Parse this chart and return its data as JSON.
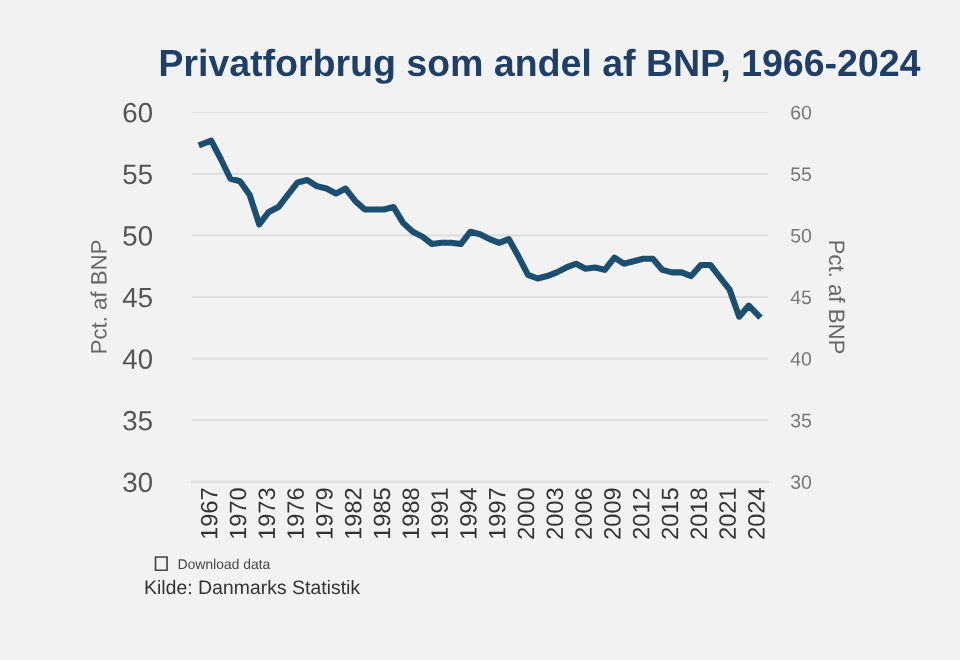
{
  "chart_data": {
    "type": "line",
    "title": "Privatforbrug som andel af BNP, 1966-2024",
    "ylabel": "Pct. af BNP",
    "y2label": "Pct. af BNP",
    "x": [
      1966,
      1967,
      1968,
      1969,
      1970,
      1971,
      1972,
      1973,
      1974,
      1975,
      1976,
      1977,
      1978,
      1979,
      1980,
      1981,
      1982,
      1983,
      1984,
      1985,
      1986,
      1987,
      1988,
      1989,
      1990,
      1991,
      1992,
      1993,
      1994,
      1995,
      1996,
      1997,
      1998,
      1999,
      2000,
      2001,
      2002,
      2003,
      2004,
      2005,
      2006,
      2007,
      2008,
      2009,
      2010,
      2011,
      2012,
      2013,
      2014,
      2015,
      2016,
      2017,
      2018,
      2019,
      2020,
      2021,
      2022,
      2023,
      2024
    ],
    "series": [
      {
        "color": "#1b4f72",
        "values": [
          57.4,
          57.7,
          56.2,
          54.6,
          54.4,
          53.3,
          50.9,
          51.9,
          52.3,
          53.3,
          54.3,
          54.5,
          54.0,
          53.8,
          53.4,
          53.8,
          52.8,
          52.1,
          52.1,
          52.1,
          52.3,
          51.0,
          50.3,
          49.9,
          49.3,
          49.4,
          49.4,
          49.3,
          50.3,
          50.1,
          49.7,
          49.4,
          49.7,
          48.3,
          46.8,
          46.5,
          46.7,
          47.0,
          47.4,
          47.7,
          47.3,
          47.4,
          47.2,
          48.2,
          47.7,
          47.9,
          48.1,
          48.1,
          47.2,
          47.0,
          47.0,
          46.7,
          47.6,
          47.6,
          46.6,
          45.6,
          43.4,
          44.3,
          43.5
        ]
      }
    ],
    "xlim": [
      1965,
      2025
    ],
    "xticks": [
      1967,
      1970,
      1973,
      1976,
      1979,
      1982,
      1985,
      1988,
      1991,
      1994,
      1997,
      2000,
      2003,
      2006,
      2009,
      2012,
      2015,
      2018,
      2021,
      2024
    ],
    "ylim": [
      30,
      60
    ],
    "yticks": [
      30,
      35,
      40,
      45,
      50,
      55,
      60
    ],
    "y2lim": [
      30,
      60
    ],
    "y2ticks": [
      30,
      35,
      40,
      45,
      50,
      55,
      60
    ],
    "grid": "y",
    "marker": "none",
    "line_style": "solid",
    "legend": false,
    "annotations": [
      "Download data",
      "Kilde: Danmarks Statistik"
    ]
  }
}
